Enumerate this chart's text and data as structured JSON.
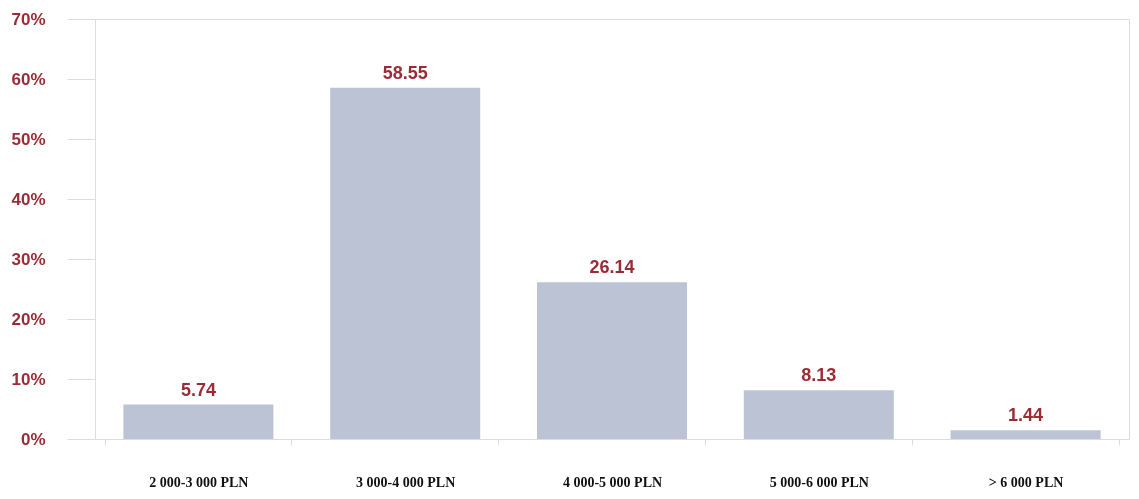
{
  "chart_data": {
    "type": "bar",
    "categories": [
      "2 000-3 000 PLN",
      "3 000-4 000 PLN",
      "4 000-5 000 PLN",
      "5 000-6 000 PLN",
      "> 6 000 PLN"
    ],
    "values": [
      5.74,
      58.55,
      26.14,
      8.13,
      1.44
    ],
    "color": "#bcc3d4",
    "ylim": [
      0,
      70
    ],
    "yticks": [
      {
        "value": 0,
        "label": "0%"
      },
      {
        "value": 10,
        "label": "10%"
      },
      {
        "value": 20,
        "label": "20%"
      },
      {
        "value": 30,
        "label": "30%"
      },
      {
        "value": 40,
        "label": "40%"
      },
      {
        "value": 50,
        "label": "50%"
      },
      {
        "value": 60,
        "label": "60%"
      },
      {
        "value": 70,
        "label": "70%"
      }
    ],
    "data_labels": true,
    "grid": false
  }
}
